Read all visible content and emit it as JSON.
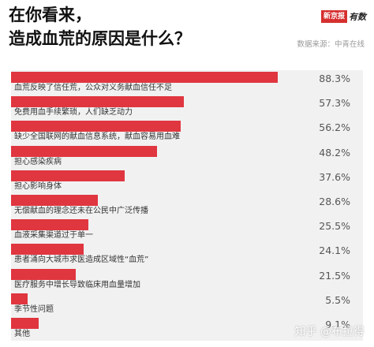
{
  "title": "在你看来，\n造成血荒的原因是什么？",
  "brand": {
    "box": "新京报",
    "script": "有数"
  },
  "source": "数据来源：中青在线",
  "watermark": "知乎 @布拉得",
  "colors": {
    "bar": "#e03640",
    "background": "#f1f1f1"
  },
  "chart_data": {
    "type": "bar",
    "orientation": "horizontal",
    "title": "在你看来，造成血荒的原因是什么？",
    "unit": "%",
    "xlim": [
      0,
      100
    ],
    "categories": [
      "血荒反映了信任荒，公众对义务献血信任不足",
      "免费用血手续繁琐，人们缺乏动力",
      "缺少全国联网的献血信息系统，献血容易用血难",
      "担心感染疾病",
      "担心影响身体",
      "无偿献血的理念还未在公民中广泛传播",
      "血液采集渠道过于单一",
      "患者涌向大城市求医造成区域性“血荒”",
      "医疗服务中增长导致临床用血量增加",
      "季节性问题",
      "其他"
    ],
    "values": [
      88.3,
      57.3,
      56.2,
      48.2,
      37.6,
      28.6,
      25.5,
      24.1,
      21.5,
      5.5,
      9.1
    ],
    "value_labels": [
      "88.3%",
      "57.3%",
      "56.2%",
      "48.2%",
      "37.6%",
      "28.6%",
      "25.5%",
      "24.1%",
      "21.5%",
      "5.5%",
      "9.1%"
    ]
  }
}
